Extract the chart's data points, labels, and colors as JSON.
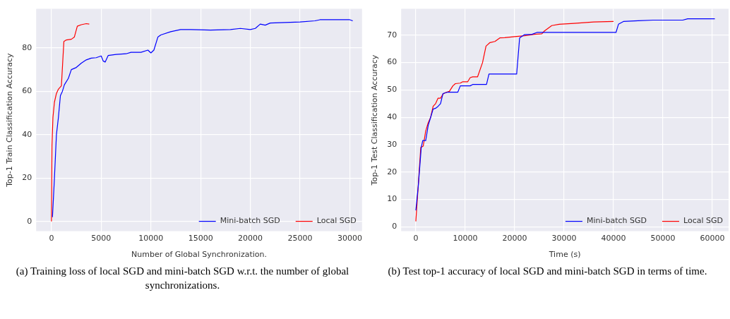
{
  "chart_data": [
    {
      "type": "line",
      "xlabel": "Number of Global Synchronization.",
      "ylabel": "Top-1 Train Classification Accuracy",
      "xlim": [
        -1540,
        31230
      ],
      "ylim": [
        -4.5,
        98
      ],
      "xticks": [
        0,
        5000,
        10000,
        15000,
        20000,
        25000,
        30000
      ],
      "yticks": [
        0,
        20,
        40,
        60,
        80
      ],
      "grid": true,
      "legend": "bottom right",
      "annotations": [
        "(a) Training loss of local SGD and mini-batch SGD w.r.t. the number of global synchronizations."
      ],
      "series": [
        {
          "name": "Mini-batch SGD",
          "color": "#0000ff",
          "x": [
            100,
            300,
            500,
            700,
            900,
            1100,
            1300,
            1700,
            2000,
            2500,
            3000,
            3500,
            4000,
            4500,
            5000,
            5200,
            5400,
            5700,
            6500,
            7500,
            8000,
            9000,
            9700,
            10000,
            10300,
            10700,
            11000,
            12000,
            13000,
            14000,
            16000,
            18000,
            19000,
            20000,
            20500,
            21000,
            21500,
            22000,
            24000,
            25000,
            26500,
            27000,
            29000,
            30000,
            30300
          ],
          "values": [
            2,
            20,
            40,
            48,
            58,
            60,
            63,
            66,
            70,
            71,
            73,
            74.5,
            75.3,
            75.5,
            76.3,
            74,
            73.5,
            76.5,
            77,
            77.3,
            78,
            78,
            79,
            77.7,
            79,
            85,
            86,
            87.5,
            88.5,
            88.5,
            88.2,
            88.5,
            89,
            88.5,
            89,
            91,
            90.5,
            91.5,
            91.8,
            92,
            92.5,
            93,
            93,
            93,
            92.5
          ]
        },
        {
          "name": "Local SGD",
          "color": "#ff0000",
          "x": [
            0,
            50,
            150,
            300,
            500,
            700,
            1000,
            1150,
            1250,
            1500,
            2000,
            2300,
            2600,
            3000,
            3500,
            3800
          ],
          "values": [
            0,
            35,
            48,
            55,
            59,
            61,
            62.5,
            75,
            83,
            83.7,
            84,
            85,
            90,
            90.7,
            91.2,
            91
          ]
        }
      ]
    },
    {
      "type": "line",
      "xlabel": "Time (s)",
      "ylabel": "Top-1 Test Classification Accuracy",
      "xlim": [
        -2970,
        63280
      ],
      "ylim": [
        -1.6,
        79.6
      ],
      "xticks": [
        0,
        10000,
        20000,
        30000,
        40000,
        50000,
        60000
      ],
      "yticks": [
        0,
        10,
        20,
        30,
        40,
        50,
        60,
        70
      ],
      "grid": true,
      "legend": "bottom right",
      "annotations": [
        "(b) Test top-1 accuracy of local SGD and mini-batch SGD in terms of time."
      ],
      "series": [
        {
          "name": "Mini-batch SGD",
          "color": "#0000ff",
          "x": [
            0,
            500,
            1100,
            1400,
            2000,
            2500,
            3000,
            3500,
            4000,
            4500,
            5000,
            5500,
            6500,
            8500,
            9000,
            11000,
            11500,
            14300,
            14800,
            20400,
            21000,
            22000,
            23500,
            24500,
            40500,
            41000,
            42000,
            45000,
            48000,
            54000,
            55000,
            60500
          ],
          "values": [
            6,
            15,
            29,
            31.5,
            31.5,
            37,
            40,
            43,
            43.3,
            44,
            45,
            48.7,
            49.2,
            49.2,
            51.5,
            51.5,
            52,
            52,
            55.8,
            55.8,
            69,
            70.2,
            70.3,
            71,
            71,
            74,
            75,
            75.3,
            75.5,
            75.5,
            76,
            76
          ]
        },
        {
          "name": "Local SGD",
          "color": "#ff0000",
          "x": [
            0,
            600,
            1000,
            1500,
            2000,
            2500,
            3000,
            3500,
            4000,
            4500,
            5000,
            5500,
            6000,
            6800,
            7500,
            8000,
            9000,
            9500,
            10500,
            11000,
            11500,
            12500,
            13500,
            14200,
            15000,
            16000,
            17000,
            18000,
            20000,
            22000,
            24000,
            25500,
            26000,
            27500,
            29000,
            32000,
            36000,
            40000
          ],
          "values": [
            2,
            18,
            29,
            29.5,
            35,
            38,
            40,
            44,
            45,
            47,
            47,
            48.5,
            49,
            49.5,
            51.5,
            52.3,
            52.5,
            53,
            53,
            54.5,
            54.8,
            54.8,
            60,
            66,
            67.3,
            67.7,
            69,
            69.1,
            69.5,
            69.8,
            70.3,
            70.5,
            71.5,
            73.5,
            74,
            74.3,
            74.8,
            75
          ]
        }
      ]
    }
  ]
}
